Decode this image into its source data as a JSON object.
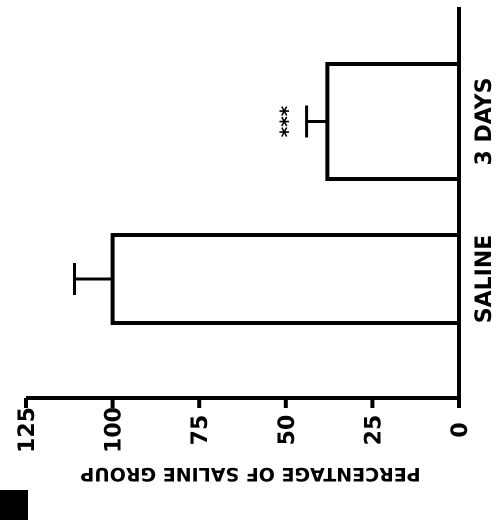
{
  "chart_data": {
    "type": "bar",
    "orientation": "horizontal",
    "categories": [
      "SALINE",
      "3 DAYS"
    ],
    "values": [
      100,
      38
    ],
    "errors": [
      11,
      6
    ],
    "annotations": [
      "",
      "***"
    ],
    "ylabel": "PERCENTAGE OF SALINE GROUP",
    "ylim": [
      0,
      125
    ],
    "yticks": [
      0,
      25,
      50,
      75,
      100,
      125
    ],
    "legend": "none",
    "grid": false
  }
}
